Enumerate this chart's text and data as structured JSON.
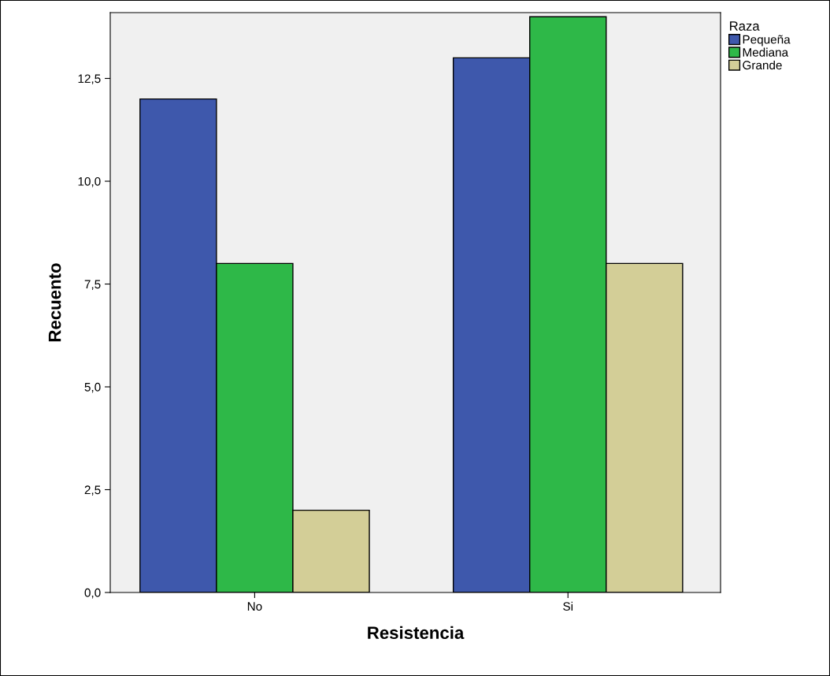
{
  "chart_data": {
    "type": "bar",
    "xlabel": "Resistencia",
    "ylabel": "Recuento",
    "legend_title": "Raza",
    "categories": [
      "No",
      "Si"
    ],
    "series": [
      {
        "name": "Pequeña",
        "color": "#3e58ac",
        "values": [
          12,
          13
        ]
      },
      {
        "name": "Mediana",
        "color": "#2eb848",
        "values": [
          8,
          14
        ]
      },
      {
        "name": "Grande",
        "color": "#d3ce97",
        "values": [
          2,
          8
        ]
      }
    ],
    "ylim": [
      0,
      14.1
    ],
    "yticks": [
      {
        "value": 0,
        "label": "0,0"
      },
      {
        "value": 2.5,
        "label": "2,5"
      },
      {
        "value": 5,
        "label": "5,0"
      },
      {
        "value": 7.5,
        "label": "7,5"
      },
      {
        "value": 10,
        "label": "10,0"
      },
      {
        "value": 12.5,
        "label": "12,5"
      }
    ],
    "grid": false,
    "legend": "top right"
  }
}
